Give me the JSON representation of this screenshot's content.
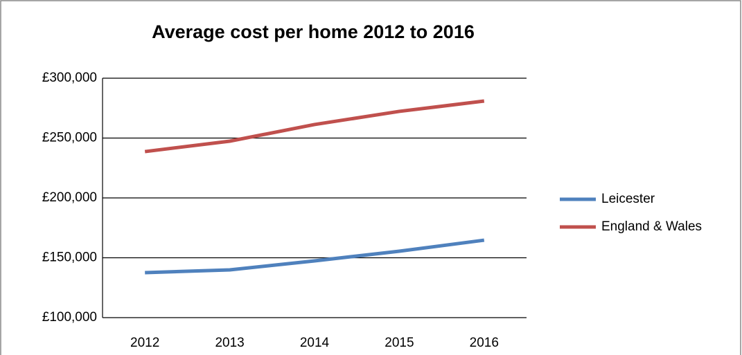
{
  "chart_data": {
    "type": "line",
    "title": "Average cost per home 2012 to 2016",
    "categories": [
      "2012",
      "2013",
      "2014",
      "2015",
      "2016"
    ],
    "series": [
      {
        "name": "Leicester",
        "color": "#4f81bd",
        "values": [
          137600,
          139900,
          147400,
          155500,
          164700
        ]
      },
      {
        "name": "England & Wales",
        "color": "#c0504d",
        "values": [
          238700,
          247400,
          261300,
          272300,
          280900
        ]
      }
    ],
    "ylim": [
      100000,
      300000
    ],
    "yticks": [
      {
        "value": 100000,
        "label": "£100,000"
      },
      {
        "value": 150000,
        "label": "£150,000"
      },
      {
        "value": 200000,
        "label": "£200,000"
      },
      {
        "value": 250000,
        "label": "£250,000"
      },
      {
        "value": 300000,
        "label": "£300,000"
      }
    ],
    "grid": true,
    "legend": "right"
  }
}
